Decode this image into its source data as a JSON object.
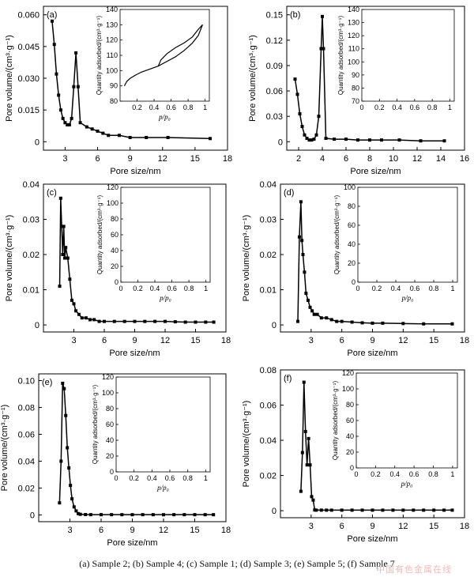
{
  "caption": "(a) Sample 2; (b) Sample 4; (c) Sample 1; (d) Sample 3; (e) Sample 5; (f) Sample 7",
  "watermark": "中国有色金属在线",
  "chart_data": [
    {
      "type": "line",
      "panel_label": "(a)",
      "xlabel": "Pore size/nm",
      "ylabel": "Pore volume/(cm³·g⁻¹)",
      "xlim": [
        1,
        18
      ],
      "ylim": [
        -0.004,
        0.064
      ],
      "xticks": [
        3,
        6,
        9,
        12,
        15,
        18
      ],
      "yticks": [
        0,
        0.015,
        0.03,
        0.045,
        0.06
      ],
      "ytick_labels": [
        "0",
        "0.015",
        "0.030",
        "0.045",
        "0.060"
      ],
      "series": [
        {
          "name": "pore size distribution",
          "x": [
            1.8,
            2.0,
            2.2,
            2.4,
            2.6,
            2.8,
            3.0,
            3.2,
            3.4,
            3.6,
            3.8,
            4.0,
            4.2,
            4.4,
            5.0,
            5.5,
            6.0,
            6.5,
            7.0,
            8.0,
            9.0,
            10.5,
            12.5,
            16.4
          ],
          "y": [
            0.057,
            0.046,
            0.032,
            0.022,
            0.015,
            0.011,
            0.009,
            0.008,
            0.008,
            0.011,
            0.026,
            0.042,
            0.026,
            0.009,
            0.007,
            0.006,
            0.005,
            0.004,
            0.003,
            0.003,
            0.002,
            0.002,
            0.002,
            0.0015
          ]
        }
      ],
      "inset": {
        "xlabel": "p/p₀",
        "ylabel": "Quantity adsorbed/(cm³·g⁻¹)",
        "xlim": [
          0,
          1.05
        ],
        "ylim": [
          80,
          140
        ],
        "xticks": [
          0.2,
          0.4,
          0.6,
          0.8,
          1.0
        ],
        "yticks": [
          80,
          90,
          100,
          110,
          120,
          130,
          140
        ],
        "series": [
          {
            "name": "adsorption",
            "x": [
              0.05,
              0.08,
              0.12,
              0.18,
              0.25,
              0.35,
              0.45,
              0.55,
              0.65,
              0.75,
              0.85,
              0.92,
              0.97
            ],
            "y": [
              90,
              93,
              95,
              97,
              99,
              101,
              103,
              106,
              109,
              113,
              118,
              123,
              130
            ]
          },
          {
            "name": "desorption",
            "x": [
              0.97,
              0.92,
              0.85,
              0.75,
              0.65,
              0.55,
              0.48,
              0.45
            ],
            "y": [
              130,
              127,
              122,
              118,
              115,
              111,
              107,
              103
            ]
          }
        ]
      }
    },
    {
      "type": "line",
      "panel_label": "(b)",
      "xlabel": "Pore size/nm",
      "ylabel": "Pore volume/(cm³·g⁻¹)",
      "xlim": [
        1,
        16
      ],
      "ylim": [
        -0.01,
        0.16
      ],
      "xticks": [
        2,
        4,
        6,
        8,
        10,
        12,
        14,
        16
      ],
      "yticks": [
        0,
        0.03,
        0.06,
        0.09,
        0.12,
        0.15
      ],
      "ytick_labels": [
        "0",
        "0.03",
        "0.06",
        "0.09",
        "0.12",
        "0.15"
      ],
      "series": [
        {
          "name": "pore size distribution",
          "x": [
            1.7,
            1.9,
            2.1,
            2.3,
            2.5,
            2.7,
            2.9,
            3.1,
            3.3,
            3.5,
            3.7,
            3.9,
            4.0,
            4.1,
            4.3,
            5.0,
            6.0,
            7.0,
            8.0,
            9.0,
            10.5,
            12.3,
            14.3
          ],
          "y": [
            0.074,
            0.056,
            0.033,
            0.018,
            0.008,
            0.004,
            0.002,
            0.002,
            0.003,
            0.008,
            0.03,
            0.11,
            0.148,
            0.11,
            0.004,
            0.003,
            0.003,
            0.002,
            0.002,
            0.002,
            0.002,
            0.001,
            0.001
          ]
        }
      ],
      "inset": {
        "xlabel": "",
        "ylabel": "Quantity adsorbed/(cm³·g⁻¹)",
        "xlim": [
          0,
          1.05
        ],
        "ylim": [
          70,
          140
        ],
        "xticks": [
          0,
          0.2,
          0.4,
          0.6,
          0.8,
          1.0
        ],
        "yticks": [
          70,
          80,
          90,
          100,
          110,
          120,
          130,
          140
        ],
        "series": []
      }
    },
    {
      "type": "line",
      "panel_label": "(c)",
      "xlabel": "Pore size/nm",
      "ylabel": "Pore volume/(cm³·g⁻¹)",
      "xlim": [
        0,
        18
      ],
      "ylim": [
        -0.002,
        0.04
      ],
      "xticks": [
        3,
        6,
        9,
        12,
        15,
        18
      ],
      "yticks": [
        0,
        0.01,
        0.02,
        0.03,
        0.04
      ],
      "ytick_labels": [
        "0",
        "0.01",
        "0.02",
        "0.03",
        "0.04"
      ],
      "series": [
        {
          "name": "pore size distribution",
          "x": [
            1.6,
            1.7,
            1.8,
            1.9,
            2.0,
            2.1,
            2.2,
            2.4,
            2.6,
            2.8,
            3.0,
            3.2,
            3.5,
            3.8,
            4.2,
            4.6,
            5.0,
            5.5,
            6.0,
            7.0,
            8.0,
            9.0,
            10.0,
            11.0,
            12.0,
            13.0,
            14.0,
            15.0,
            16.0,
            16.8
          ],
          "y": [
            0.011,
            0.036,
            0.028,
            0.02,
            0.028,
            0.019,
            0.022,
            0.019,
            0.013,
            0.007,
            0.006,
            0.004,
            0.003,
            0.002,
            0.002,
            0.0015,
            0.0015,
            0.001,
            0.001,
            0.001,
            0.001,
            0.001,
            0.001,
            0.001,
            0.001,
            0.0009,
            0.0008,
            0.0008,
            0.0008,
            0.0008
          ]
        }
      ],
      "inset": {
        "xlabel": "p/p₀",
        "ylabel": "Quantity adsorbed/(cm³·g⁻¹)",
        "xlim": [
          0,
          1.05
        ],
        "ylim": [
          0,
          120
        ],
        "xticks": [
          0,
          0.2,
          0.4,
          0.6,
          0.8,
          1.0
        ],
        "yticks": [
          0,
          20,
          40,
          60,
          80,
          100,
          120
        ],
        "series": []
      }
    },
    {
      "type": "line",
      "panel_label": "(d)",
      "xlabel": "Pore size/nm",
      "ylabel": "Pore volume/(cm³·g⁻¹)",
      "xlim": [
        0,
        18
      ],
      "ylim": [
        -0.002,
        0.04
      ],
      "xticks": [
        3,
        6,
        9,
        12,
        15,
        18
      ],
      "yticks": [
        0,
        0.01,
        0.02,
        0.03,
        0.04
      ],
      "ytick_labels": [
        "0",
        "0.01",
        "0.02",
        "0.03",
        "0.04"
      ],
      "series": [
        {
          "name": "pore size distribution",
          "x": [
            1.7,
            1.85,
            2.0,
            2.1,
            2.2,
            2.35,
            2.5,
            2.7,
            2.9,
            3.1,
            3.3,
            3.6,
            4.0,
            4.5,
            5.0,
            5.5,
            6.0,
            7.0,
            8.0,
            9.0,
            10.0,
            12.0,
            14.0,
            16.8
          ],
          "y": [
            0.001,
            0.025,
            0.035,
            0.024,
            0.02,
            0.015,
            0.009,
            0.007,
            0.005,
            0.004,
            0.003,
            0.003,
            0.002,
            0.002,
            0.0015,
            0.001,
            0.001,
            0.0008,
            0.0006,
            0.0005,
            0.0005,
            0.0004,
            0.0003,
            0.0003
          ]
        }
      ],
      "inset": {
        "xlabel": "p/p₀",
        "ylabel": "Quantity adsorbed/(cm³·g⁻¹)",
        "xlim": [
          0,
          1.05
        ],
        "ylim": [
          0,
          100
        ],
        "xticks": [
          0,
          0.2,
          0.4,
          0.6,
          0.8,
          1.0
        ],
        "yticks": [
          0,
          20,
          40,
          60,
          80,
          100
        ],
        "series": []
      }
    },
    {
      "type": "line",
      "panel_label": "(e)",
      "xlabel": "Pore size/nm",
      "ylabel": "Pore volume/(cm³·g⁻¹)",
      "xlim": [
        0,
        18
      ],
      "ylim": [
        -0.005,
        0.105
      ],
      "xticks": [
        3,
        6,
        9,
        12,
        15,
        18
      ],
      "yticks": [
        0,
        0.02,
        0.04,
        0.06,
        0.08,
        0.1
      ],
      "ytick_labels": [
        "0",
        "0.02",
        "0.04",
        "0.06",
        "0.08",
        "0.10"
      ],
      "series": [
        {
          "name": "pore size distribution",
          "x": [
            2.0,
            2.15,
            2.3,
            2.45,
            2.6,
            2.75,
            2.9,
            3.05,
            3.2,
            3.4,
            3.6,
            3.8,
            4.0,
            4.5,
            5.0,
            6.0,
            7.0,
            8.0,
            9.0,
            10.0,
            11.0,
            12.0,
            13.0,
            14.0,
            15.0,
            16.0,
            16.8
          ],
          "y": [
            0.009,
            0.04,
            0.098,
            0.094,
            0.074,
            0.05,
            0.035,
            0.022,
            0.012,
            0.006,
            0.003,
            0.001,
            0.0005,
            0.0003,
            0.0002,
            0.0002,
            0.0002,
            0.0002,
            0.0002,
            0.0002,
            0.0002,
            0.0002,
            0.0002,
            0.0002,
            0.0002,
            0.0002,
            0.0002
          ]
        }
      ],
      "inset": {
        "xlabel": "p/p₀",
        "ylabel": "Quantity adsorbed/(cm³·g⁻¹)",
        "xlim": [
          0,
          1.05
        ],
        "ylim": [
          0,
          120
        ],
        "xticks": [
          0,
          0.2,
          0.4,
          0.6,
          0.8,
          1.0
        ],
        "yticks": [
          0,
          20,
          40,
          60,
          80,
          100,
          120
        ],
        "series": []
      }
    },
    {
      "type": "line",
      "panel_label": "(f)",
      "xlabel": "Pore size/nm",
      "ylabel": "Pore volume/(cm³·g⁻¹)",
      "xlim": [
        0,
        18
      ],
      "ylim": [
        -0.004,
        0.08
      ],
      "xticks": [
        3,
        6,
        9,
        12,
        15,
        18
      ],
      "yticks": [
        0,
        0.02,
        0.04,
        0.06,
        0.08
      ],
      "ytick_labels": [
        "0",
        "0.02",
        "0.04",
        "0.06",
        "0.08"
      ],
      "series": [
        {
          "name": "pore size distribution",
          "x": [
            2.0,
            2.15,
            2.3,
            2.45,
            2.6,
            2.75,
            2.9,
            3.05,
            3.2,
            3.35,
            3.5,
            4.0,
            4.5,
            5.0,
            6.0,
            7.0,
            8.0,
            9.0,
            10.0,
            11.0,
            12.0,
            13.0,
            14.0,
            15.0,
            16.0,
            16.8
          ],
          "y": [
            0.011,
            0.033,
            0.073,
            0.045,
            0.026,
            0.041,
            0.026,
            0.008,
            0.006,
            0.0004,
            0.0003,
            0.0003,
            0.0003,
            0.0003,
            0.0003,
            0.0003,
            0.0003,
            0.0003,
            0.0003,
            0.0003,
            0.0003,
            0.0003,
            0.0003,
            0.0003,
            0.0003,
            0.0003
          ]
        }
      ],
      "inset": {
        "xlabel": "p/p₀",
        "ylabel": "Quantity adsorbed/(cm³·g⁻¹)",
        "xlim": [
          0,
          1.05
        ],
        "ylim": [
          0,
          120
        ],
        "xticks": [
          0,
          0.2,
          0.4,
          0.6,
          0.8,
          1.0
        ],
        "yticks": [
          0,
          20,
          40,
          60,
          80,
          100,
          120
        ],
        "series": []
      }
    }
  ]
}
